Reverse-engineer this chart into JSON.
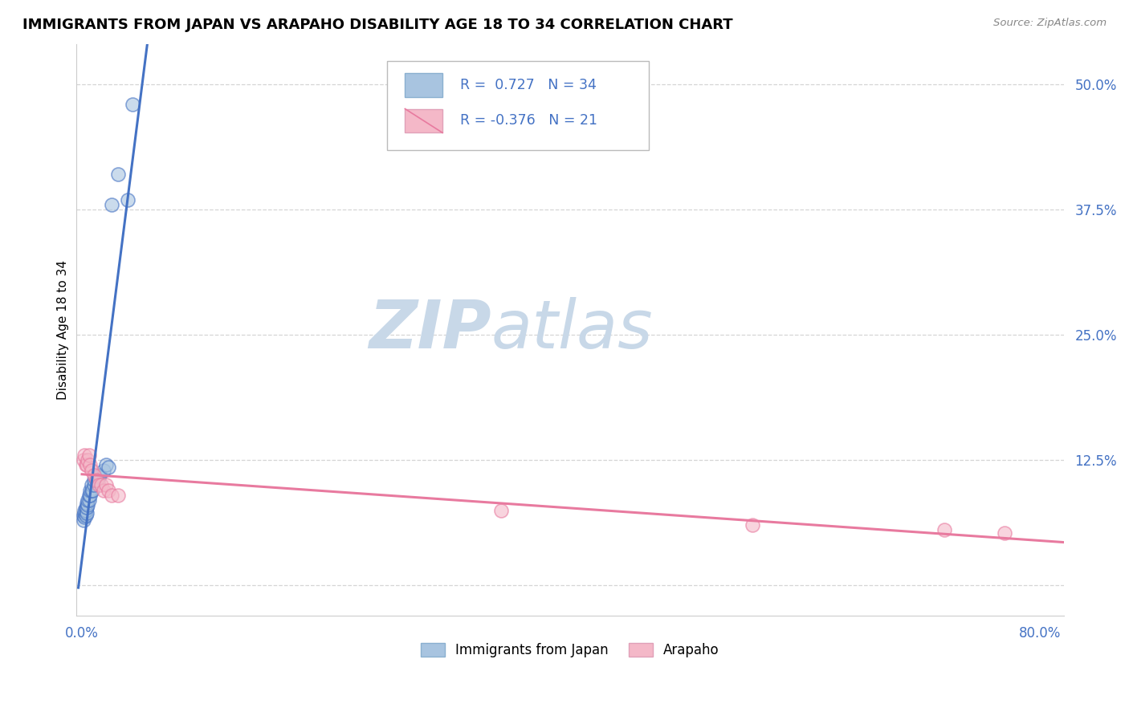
{
  "title": "IMMIGRANTS FROM JAPAN VS ARAPAHO DISABILITY AGE 18 TO 34 CORRELATION CHART",
  "source": "Source: ZipAtlas.com",
  "ylabel": "Disability Age 18 to 34",
  "xlim": [
    -0.005,
    0.82
  ],
  "ylim": [
    -0.03,
    0.54
  ],
  "xticks": [
    0.0,
    0.2,
    0.4,
    0.6,
    0.8
  ],
  "xticklabels": [
    "0.0%",
    "",
    "",
    "",
    "80.0%"
  ],
  "ytick_positions": [
    0.0,
    0.125,
    0.25,
    0.375,
    0.5
  ],
  "yticklabels": [
    "",
    "12.5%",
    "25.0%",
    "37.5%",
    "50.0%"
  ],
  "japan_x": [
    0.001,
    0.001,
    0.002,
    0.002,
    0.002,
    0.003,
    0.003,
    0.003,
    0.004,
    0.004,
    0.004,
    0.005,
    0.005,
    0.006,
    0.006,
    0.007,
    0.007,
    0.008,
    0.008,
    0.009,
    0.01,
    0.01,
    0.011,
    0.012,
    0.013,
    0.014,
    0.015,
    0.018,
    0.02,
    0.022,
    0.025,
    0.03,
    0.038,
    0.042
  ],
  "japan_y": [
    0.065,
    0.07,
    0.068,
    0.072,
    0.075,
    0.07,
    0.075,
    0.078,
    0.072,
    0.078,
    0.082,
    0.08,
    0.085,
    0.085,
    0.09,
    0.09,
    0.095,
    0.095,
    0.1,
    0.095,
    0.1,
    0.105,
    0.108,
    0.105,
    0.105,
    0.108,
    0.11,
    0.115,
    0.12,
    0.118,
    0.38,
    0.41,
    0.385,
    0.48
  ],
  "arapaho_x": [
    0.001,
    0.002,
    0.003,
    0.004,
    0.005,
    0.006,
    0.007,
    0.008,
    0.01,
    0.012,
    0.014,
    0.016,
    0.018,
    0.02,
    0.022,
    0.025,
    0.03,
    0.35,
    0.56,
    0.72,
    0.77
  ],
  "arapaho_y": [
    0.125,
    0.13,
    0.12,
    0.12,
    0.125,
    0.13,
    0.12,
    0.115,
    0.11,
    0.105,
    0.1,
    0.1,
    0.095,
    0.1,
    0.095,
    0.09,
    0.09,
    0.075,
    0.06,
    0.055,
    0.052
  ],
  "japan_color": "#a8c4e0",
  "arapaho_color": "#f4b8c8",
  "japan_line_color": "#4472c4",
  "arapaho_line_color": "#e87a9f",
  "japan_r": 0.727,
  "japan_n": 34,
  "arapaho_r": -0.376,
  "arapaho_n": 21,
  "legend_entries": [
    "Immigrants from Japan",
    "Arapaho"
  ],
  "background_color": "#ffffff",
  "grid_color": "#d5d5d5",
  "tick_color": "#4472c4"
}
